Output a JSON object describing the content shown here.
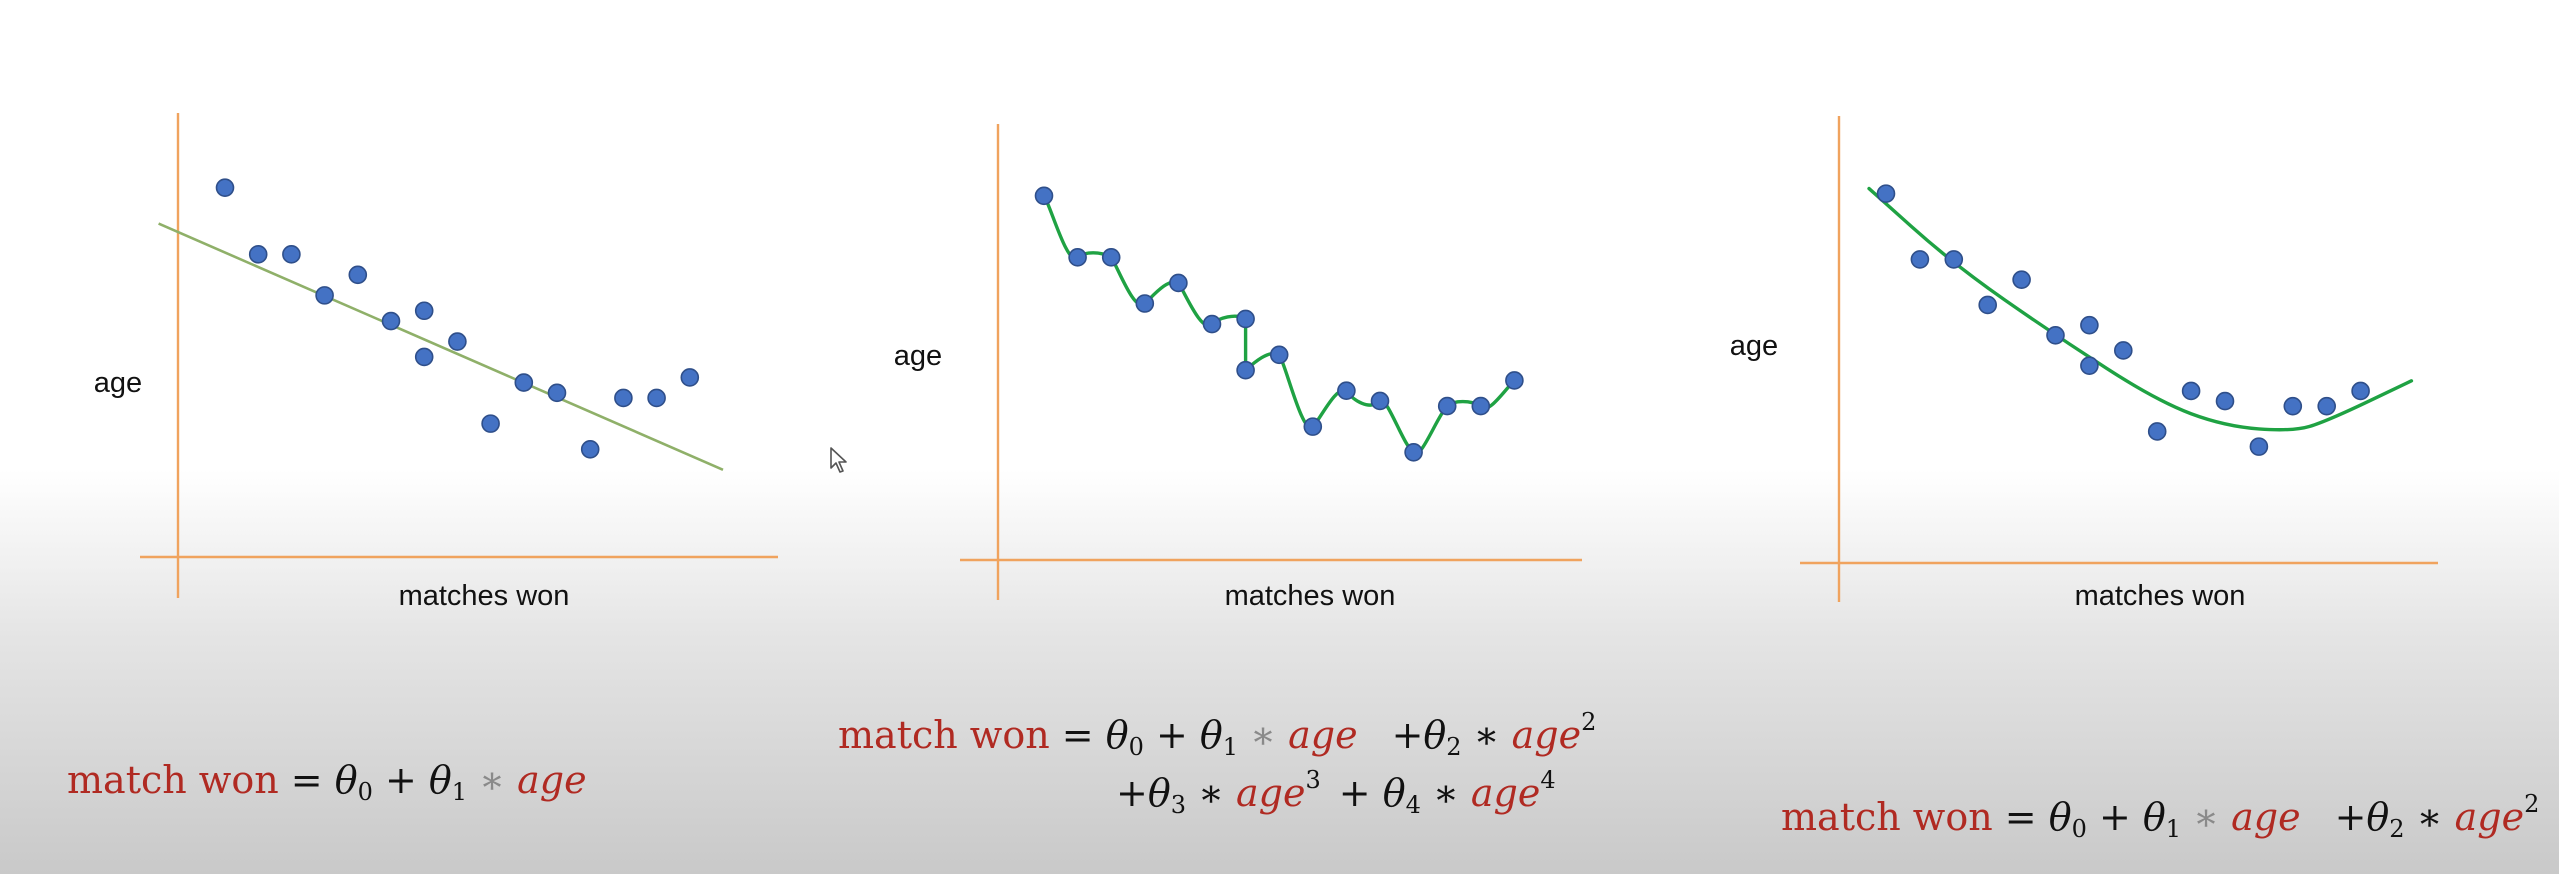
{
  "colors": {
    "axis": "#f0a35e",
    "point_fill": "#4472c4",
    "point_stroke": "#2f4f8a",
    "linear_fit": "#8fb069",
    "curve_fit": "#1fa243",
    "equation_red": "#b02a22"
  },
  "chart_data": [
    {
      "type": "scatter",
      "title": "",
      "xlabel": "matches won",
      "ylabel": "age",
      "grid": false,
      "fit": "linear",
      "x": [
        1,
        2,
        3,
        4,
        5,
        6,
        7,
        7,
        8,
        9,
        10,
        11,
        12,
        13,
        14,
        15
      ],
      "y": [
        7.2,
        5.9,
        5.9,
        5.1,
        5.5,
        4.6,
        4.8,
        3.9,
        4.2,
        2.6,
        3.4,
        3.2,
        2.1,
        3.1,
        3.1,
        3.5
      ],
      "fit_line": [
        [
          -1,
          6.5
        ],
        [
          16,
          1.7
        ]
      ]
    },
    {
      "type": "scatter",
      "title": "",
      "xlabel": "matches won",
      "ylabel": "age",
      "grid": false,
      "fit": "overfit",
      "x": [
        1,
        2,
        3,
        4,
        5,
        6,
        7,
        7,
        8,
        9,
        10,
        11,
        12,
        13,
        14,
        15
      ],
      "y": [
        7.1,
        5.9,
        5.9,
        5.0,
        5.4,
        4.6,
        4.7,
        3.7,
        4.0,
        2.6,
        3.3,
        3.1,
        2.1,
        3.0,
        3.0,
        3.5
      ]
    },
    {
      "type": "scatter",
      "title": "",
      "xlabel": "matches won",
      "ylabel": "age",
      "grid": false,
      "fit": "quadratic",
      "x": [
        1,
        2,
        3,
        4,
        5,
        6,
        7,
        7,
        8,
        9,
        10,
        11,
        12,
        13,
        14,
        15
      ],
      "y": [
        7.3,
        6.0,
        6.0,
        5.1,
        5.6,
        4.5,
        4.7,
        3.9,
        4.2,
        2.6,
        3.4,
        3.2,
        2.3,
        3.1,
        3.1,
        3.4
      ],
      "fit_curve": [
        [
          0.5,
          7.4
        ],
        [
          3,
          5.9
        ],
        [
          6,
          4.5
        ],
        [
          9,
          3.2
        ],
        [
          11,
          2.7
        ],
        [
          13,
          2.6
        ],
        [
          14,
          2.8
        ],
        [
          16.5,
          3.6
        ]
      ]
    }
  ],
  "equations": {
    "left": {
      "lhs": "match won",
      "eq": "=",
      "theta": "θ",
      "plus": "+",
      "times": "∗",
      "var": "age",
      "sub0": "0",
      "sub1": "1"
    },
    "middle": {
      "lhs": "match won",
      "eq": "=",
      "theta": "θ",
      "plus": "+",
      "times": "∗",
      "var": "age",
      "sub0": "0",
      "sub1": "1",
      "sub2": "2",
      "sub3": "3",
      "sub4": "4",
      "pow2": "2",
      "pow3": "3",
      "pow4": "4"
    },
    "right": {
      "lhs": "match won",
      "eq": "=",
      "theta": "θ",
      "plus": "+",
      "times": "∗",
      "var": "age",
      "sub0": "0",
      "sub1": "1",
      "sub2": "2",
      "pow2": "2"
    }
  }
}
